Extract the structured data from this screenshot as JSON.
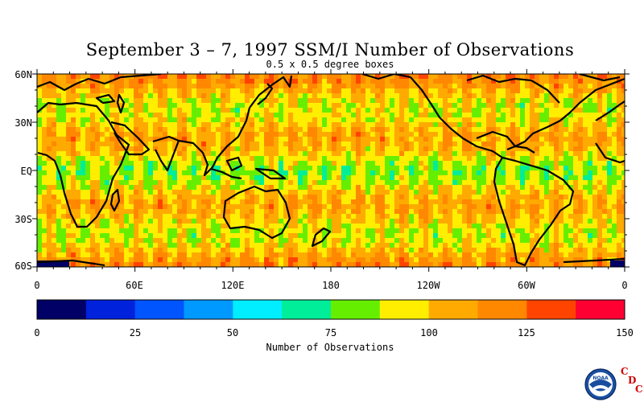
{
  "title": "September 3 – 7, 1997 SSM/I Number of Observations",
  "subtitle": "0.5 x 0.5 degree boxes",
  "map": {
    "projection": "equirectangular",
    "lat_labels": [
      "60N",
      "30N",
      "EQ",
      "30S",
      "60S"
    ],
    "lon_labels": [
      "0",
      "60E",
      "120E",
      "180",
      "120W",
      "60W",
      "0"
    ]
  },
  "colorbar": {
    "title": "Number of Observations",
    "tick_labels": [
      "0",
      "25",
      "50",
      "75",
      "100",
      "125",
      "150"
    ],
    "min": 0,
    "max": 150,
    "colors": [
      "#000066",
      "#0022dd",
      "#0055ff",
      "#0099ff",
      "#00eeff",
      "#00ee99",
      "#66ee00",
      "#ffee00",
      "#ffaa00",
      "#ff8800",
      "#ff4400",
      "#ff0033"
    ]
  },
  "logo": {
    "text": "NOAA",
    "cdc_letters": [
      "C",
      "D",
      "C"
    ]
  }
}
